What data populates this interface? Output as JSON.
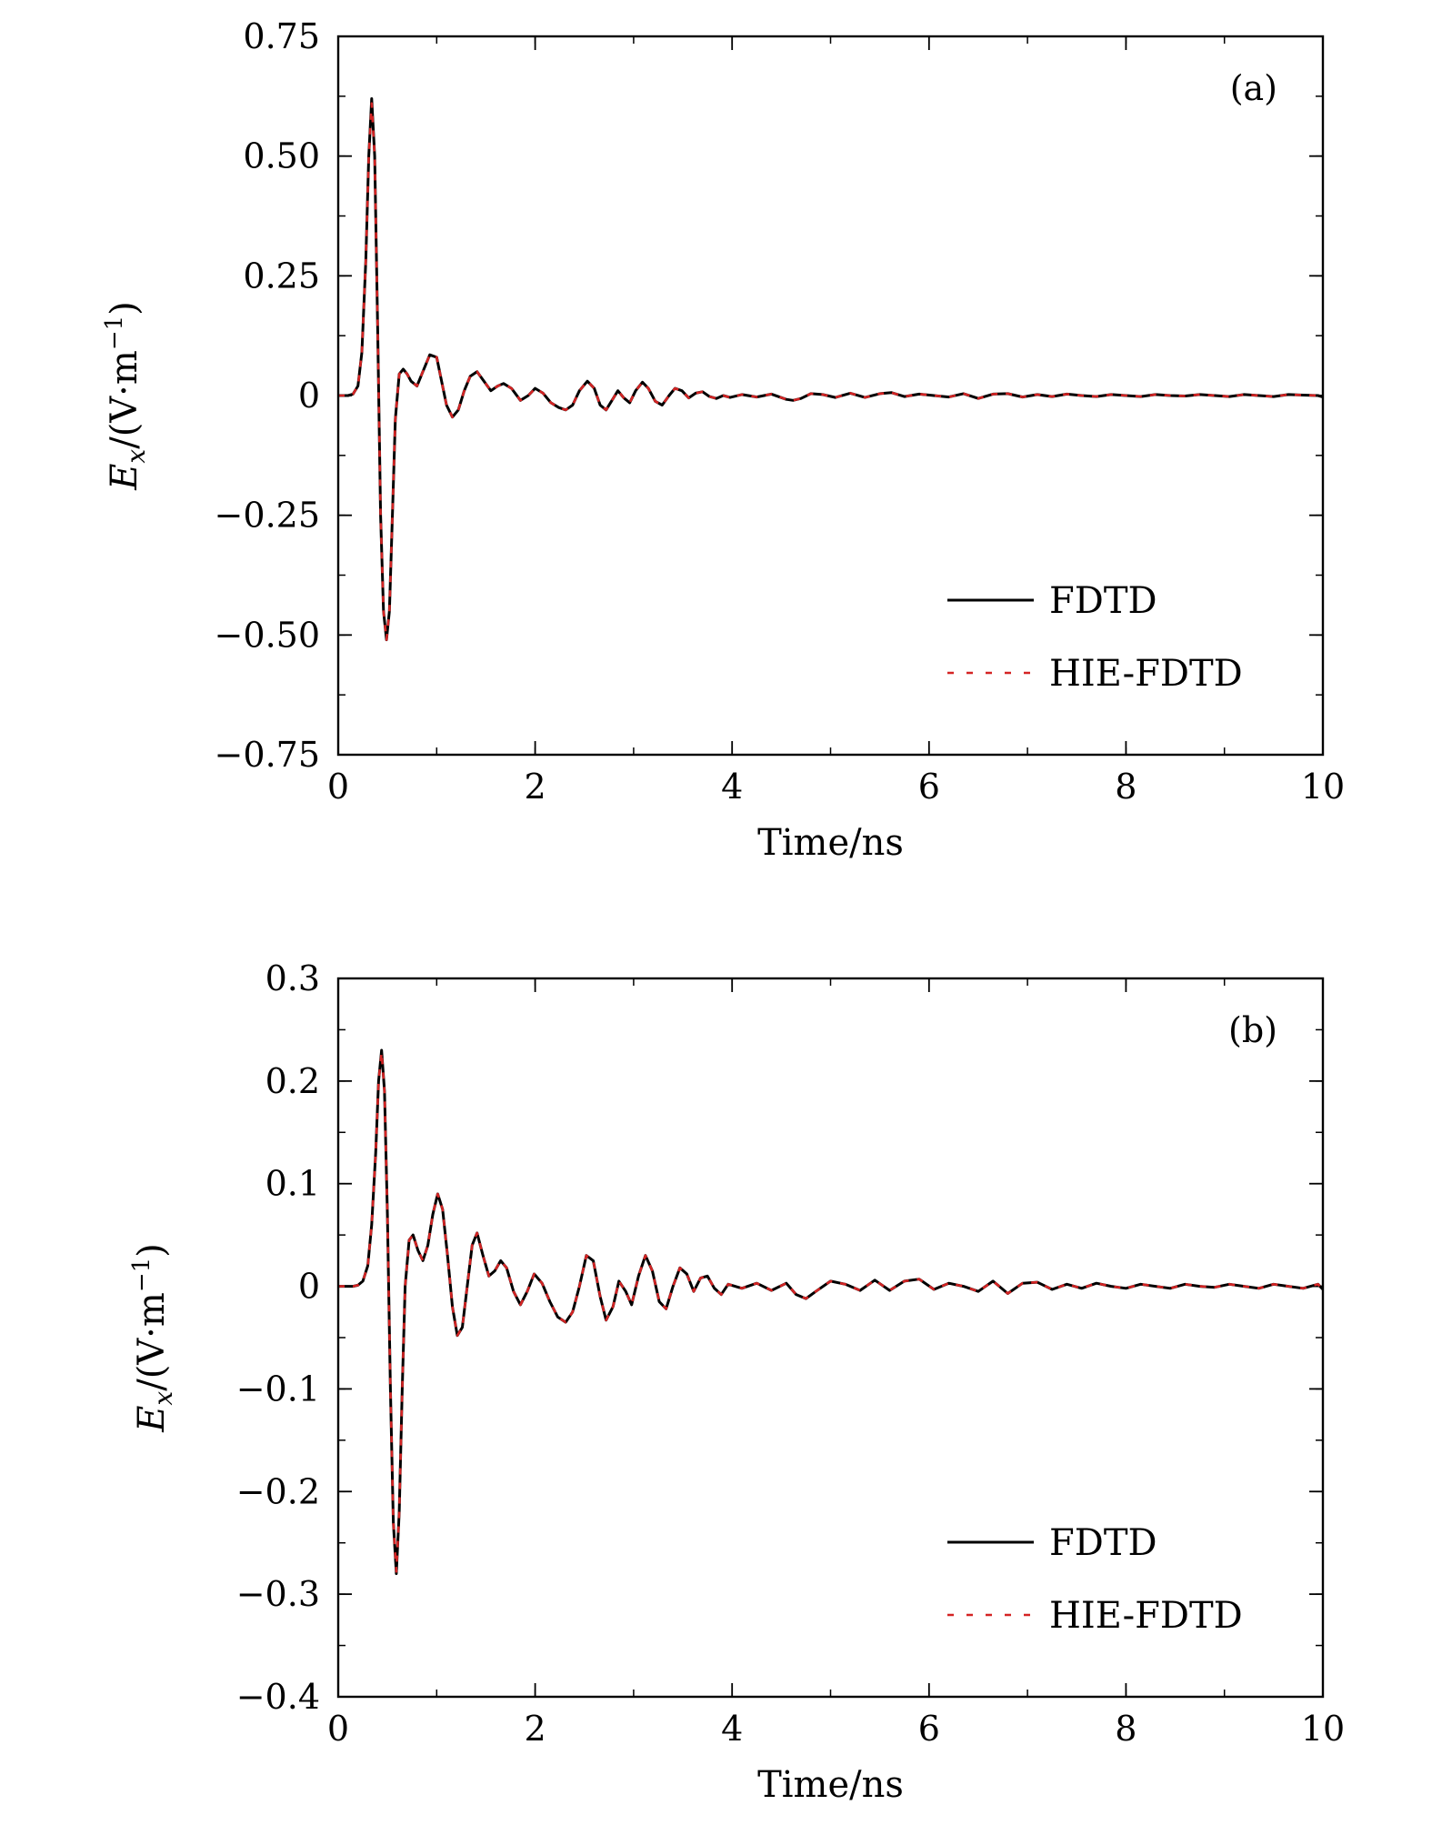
{
  "chart_data": [
    {
      "type": "line",
      "panel_label": "(a)",
      "xlabel": "Time/ns",
      "ylabel": "Ex/(V·m−1)",
      "ylabel_parts": {
        "symbol": "E",
        "sub": "x",
        "unit_open": "/(V·m",
        "sup": "−1",
        "unit_close": ")"
      },
      "xlim": [
        0,
        10
      ],
      "ylim": [
        -0.75,
        0.75
      ],
      "x_ticks": [
        0,
        2,
        4,
        6,
        8,
        10
      ],
      "x_tick_labels": [
        "0",
        "2",
        "4",
        "6",
        "8",
        "10"
      ],
      "y_ticks": [
        -0.75,
        -0.5,
        -0.25,
        0,
        0.25,
        0.5,
        0.75
      ],
      "y_tick_labels": [
        "−0.75",
        "−0.50",
        "−0.25",
        "0",
        "0.25",
        "0.50",
        "0.75"
      ],
      "grid": false,
      "legend_position": "bottom-right",
      "series": [
        {
          "name": "FDTD",
          "color": "#000000",
          "style": "solid",
          "x": [
            0,
            0.1,
            0.15,
            0.2,
            0.24,
            0.28,
            0.31,
            0.34,
            0.37,
            0.4,
            0.43,
            0.46,
            0.49,
            0.52,
            0.55,
            0.58,
            0.62,
            0.66,
            0.7,
            0.74,
            0.8,
            0.86,
            0.93,
            1.0,
            1.04,
            1.1,
            1.16,
            1.22,
            1.28,
            1.34,
            1.41,
            1.48,
            1.55,
            1.62,
            1.68,
            1.76,
            1.85,
            1.93,
            2.0,
            2.08,
            2.16,
            2.24,
            2.31,
            2.38,
            2.45,
            2.53,
            2.6,
            2.66,
            2.72,
            2.78,
            2.84,
            2.9,
            2.96,
            3.02,
            3.09,
            3.15,
            3.22,
            3.29,
            3.36,
            3.42,
            3.49,
            3.56,
            3.63,
            3.7,
            3.77,
            3.84,
            3.91,
            3.98,
            4.1,
            4.25,
            4.4,
            4.55,
            4.62,
            4.7,
            4.8,
            4.92,
            5.05,
            5.2,
            5.35,
            5.5,
            5.62,
            5.75,
            5.9,
            6.05,
            6.2,
            6.35,
            6.5,
            6.65,
            6.8,
            6.95,
            7.1,
            7.25,
            7.4,
            7.55,
            7.7,
            7.85,
            8.0,
            8.15,
            8.3,
            8.45,
            8.6,
            8.75,
            8.9,
            9.05,
            9.2,
            9.35,
            9.5,
            9.65,
            9.8,
            9.95,
            10.0
          ],
          "y": [
            0,
            0,
            0.003,
            0.02,
            0.09,
            0.28,
            0.5,
            0.62,
            0.5,
            0.15,
            -0.25,
            -0.45,
            -0.51,
            -0.45,
            -0.25,
            -0.05,
            0.045,
            0.055,
            0.045,
            0.03,
            0.02,
            0.05,
            0.085,
            0.08,
            0.04,
            -0.02,
            -0.045,
            -0.03,
            0.01,
            0.04,
            0.05,
            0.03,
            0.01,
            0.02,
            0.025,
            0.015,
            -0.01,
            0.0,
            0.015,
            0.005,
            -0.015,
            -0.025,
            -0.03,
            -0.02,
            0.01,
            0.03,
            0.015,
            -0.02,
            -0.03,
            -0.01,
            0.01,
            -0.005,
            -0.015,
            0.01,
            0.028,
            0.015,
            -0.012,
            -0.02,
            0.0,
            0.015,
            0.01,
            -0.005,
            0.005,
            0.008,
            -0.002,
            -0.006,
            0.0,
            -0.004,
            0.002,
            -0.003,
            0.003,
            -0.008,
            -0.01,
            -0.006,
            0.004,
            0.002,
            -0.004,
            0.005,
            -0.004,
            0.004,
            0.006,
            -0.002,
            0.003,
            0.0,
            -0.003,
            0.004,
            -0.006,
            0.003,
            0.004,
            -0.003,
            0.002,
            -0.002,
            0.003,
            0.0,
            -0.002,
            0.002,
            0.0,
            -0.002,
            0.002,
            0.0,
            -0.001,
            0.002,
            0.0,
            -0.002,
            0.002,
            0.0,
            -0.002,
            0.002,
            0.001,
            0.0,
            -0.003
          ]
        },
        {
          "name": "HIE-FDTD",
          "color": "#d42424",
          "style": "dashed",
          "x": [
            0,
            0.1,
            0.15,
            0.2,
            0.24,
            0.28,
            0.31,
            0.34,
            0.37,
            0.4,
            0.43,
            0.46,
            0.49,
            0.52,
            0.55,
            0.58,
            0.62,
            0.66,
            0.7,
            0.74,
            0.8,
            0.86,
            0.93,
            1.0,
            1.04,
            1.1,
            1.16,
            1.22,
            1.28,
            1.34,
            1.41,
            1.48,
            1.55,
            1.62,
            1.68,
            1.76,
            1.85,
            1.93,
            2.0,
            2.08,
            2.16,
            2.24,
            2.31,
            2.38,
            2.45,
            2.53,
            2.6,
            2.66,
            2.72,
            2.78,
            2.84,
            2.9,
            2.96,
            3.02,
            3.09,
            3.15,
            3.22,
            3.29,
            3.36,
            3.42,
            3.49,
            3.56,
            3.63,
            3.7,
            3.77,
            3.84,
            3.91,
            3.98,
            4.1,
            4.25,
            4.4,
            4.55,
            4.62,
            4.7,
            4.8,
            4.92,
            5.05,
            5.2,
            5.35,
            5.5,
            5.62,
            5.75,
            5.9,
            6.05,
            6.2,
            6.35,
            6.5,
            6.65,
            6.8,
            6.95,
            7.1,
            7.25,
            7.4,
            7.55,
            7.7,
            7.85,
            8.0,
            8.15,
            8.3,
            8.45,
            8.6,
            8.75,
            8.9,
            9.05,
            9.2,
            9.35,
            9.5,
            9.65,
            9.8,
            9.95,
            10.0
          ],
          "y": [
            0,
            0,
            0.003,
            0.02,
            0.09,
            0.28,
            0.5,
            0.61,
            0.5,
            0.15,
            -0.25,
            -0.45,
            -0.51,
            -0.45,
            -0.25,
            -0.05,
            0.045,
            0.055,
            0.045,
            0.03,
            0.02,
            0.05,
            0.085,
            0.08,
            0.04,
            -0.02,
            -0.045,
            -0.03,
            0.01,
            0.04,
            0.05,
            0.03,
            0.01,
            0.02,
            0.025,
            0.015,
            -0.01,
            0.0,
            0.015,
            0.005,
            -0.015,
            -0.025,
            -0.03,
            -0.02,
            0.01,
            0.03,
            0.015,
            -0.02,
            -0.03,
            -0.01,
            0.01,
            -0.005,
            -0.015,
            0.01,
            0.028,
            0.015,
            -0.012,
            -0.02,
            0.0,
            0.015,
            0.01,
            -0.005,
            0.005,
            0.008,
            -0.002,
            -0.006,
            0.0,
            -0.004,
            0.002,
            -0.003,
            0.003,
            -0.008,
            -0.01,
            -0.006,
            0.004,
            0.002,
            -0.004,
            0.005,
            -0.004,
            0.004,
            0.006,
            -0.002,
            0.003,
            0.0,
            -0.003,
            0.004,
            -0.006,
            0.003,
            0.004,
            -0.003,
            0.002,
            -0.002,
            0.003,
            0.0,
            -0.002,
            0.002,
            0.0,
            -0.002,
            0.002,
            0.0,
            -0.001,
            0.002,
            0.0,
            -0.002,
            0.002,
            0.0,
            -0.002,
            0.002,
            0.001,
            0.0,
            -0.003
          ]
        }
      ]
    },
    {
      "type": "line",
      "panel_label": "(b)",
      "xlabel": "Time/ns",
      "ylabel": "Ex/(V·m−1)",
      "ylabel_parts": {
        "symbol": "E",
        "sub": "x",
        "unit_open": "/(V·m",
        "sup": "−1",
        "unit_close": ")"
      },
      "xlim": [
        0,
        10
      ],
      "ylim": [
        -0.4,
        0.3
      ],
      "x_ticks": [
        0,
        2,
        4,
        6,
        8,
        10
      ],
      "x_tick_labels": [
        "0",
        "2",
        "4",
        "6",
        "8",
        "10"
      ],
      "y_ticks": [
        -0.4,
        -0.3,
        -0.2,
        -0.1,
        0,
        0.1,
        0.2,
        0.3
      ],
      "y_tick_labels": [
        "−0.4",
        "−0.3",
        "−0.2",
        "−0.1",
        "0",
        "0.1",
        "0.2",
        "0.3"
      ],
      "grid": false,
      "legend_position": "bottom-right",
      "series": [
        {
          "name": "FDTD",
          "color": "#000000",
          "style": "solid",
          "x": [
            0,
            0.15,
            0.2,
            0.25,
            0.3,
            0.34,
            0.38,
            0.41,
            0.44,
            0.47,
            0.5,
            0.53,
            0.56,
            0.59,
            0.62,
            0.65,
            0.68,
            0.72,
            0.76,
            0.81,
            0.86,
            0.91,
            0.96,
            1.01,
            1.06,
            1.11,
            1.16,
            1.21,
            1.26,
            1.31,
            1.36,
            1.41,
            1.47,
            1.53,
            1.59,
            1.65,
            1.71,
            1.78,
            1.85,
            1.92,
            1.99,
            2.07,
            2.15,
            2.23,
            2.31,
            2.38,
            2.45,
            2.52,
            2.59,
            2.66,
            2.72,
            2.79,
            2.85,
            2.92,
            2.98,
            3.05,
            3.12,
            3.19,
            3.26,
            3.33,
            3.4,
            3.47,
            3.54,
            3.61,
            3.68,
            3.75,
            3.82,
            3.89,
            3.96,
            4.1,
            4.25,
            4.4,
            4.55,
            4.65,
            4.75,
            4.85,
            5.0,
            5.15,
            5.3,
            5.45,
            5.6,
            5.75,
            5.9,
            6.05,
            6.2,
            6.35,
            6.5,
            6.65,
            6.8,
            6.95,
            7.1,
            7.25,
            7.4,
            7.55,
            7.7,
            7.85,
            8.0,
            8.15,
            8.3,
            8.45,
            8.6,
            8.75,
            8.9,
            9.05,
            9.2,
            9.35,
            9.5,
            9.65,
            9.8,
            9.95,
            10.0
          ],
          "y": [
            0,
            0,
            0.001,
            0.005,
            0.02,
            0.06,
            0.13,
            0.2,
            0.23,
            0.19,
            0.07,
            -0.1,
            -0.23,
            -0.28,
            -0.22,
            -0.1,
            0.0,
            0.045,
            0.05,
            0.035,
            0.025,
            0.04,
            0.07,
            0.09,
            0.075,
            0.03,
            -0.02,
            -0.048,
            -0.04,
            0.0,
            0.04,
            0.052,
            0.03,
            0.01,
            0.015,
            0.025,
            0.018,
            -0.005,
            -0.018,
            -0.005,
            0.012,
            0.003,
            -0.015,
            -0.03,
            -0.035,
            -0.025,
            0.0,
            0.03,
            0.025,
            -0.01,
            -0.033,
            -0.02,
            0.005,
            -0.005,
            -0.018,
            0.01,
            0.03,
            0.015,
            -0.015,
            -0.022,
            0.0,
            0.018,
            0.012,
            -0.005,
            0.008,
            0.01,
            -0.002,
            -0.008,
            0.002,
            -0.002,
            0.003,
            -0.004,
            0.003,
            -0.008,
            -0.012,
            -0.005,
            0.005,
            0.002,
            -0.004,
            0.006,
            -0.004,
            0.005,
            0.007,
            -0.003,
            0.003,
            0.0,
            -0.005,
            0.005,
            -0.007,
            0.003,
            0.004,
            -0.003,
            0.002,
            -0.002,
            0.003,
            0.0,
            -0.002,
            0.002,
            0.0,
            -0.002,
            0.002,
            0.0,
            -0.001,
            0.002,
            0.0,
            -0.002,
            0.002,
            0.0,
            -0.002,
            0.002,
            -0.003
          ]
        },
        {
          "name": "HIE-FDTD",
          "color": "#d42424",
          "style": "dashed",
          "x": [
            0,
            0.15,
            0.2,
            0.25,
            0.3,
            0.34,
            0.38,
            0.41,
            0.44,
            0.47,
            0.5,
            0.53,
            0.56,
            0.59,
            0.62,
            0.65,
            0.68,
            0.72,
            0.76,
            0.81,
            0.86,
            0.91,
            0.96,
            1.01,
            1.06,
            1.11,
            1.16,
            1.21,
            1.26,
            1.31,
            1.36,
            1.41,
            1.47,
            1.53,
            1.59,
            1.65,
            1.71,
            1.78,
            1.85,
            1.92,
            1.99,
            2.07,
            2.15,
            2.23,
            2.31,
            2.38,
            2.45,
            2.52,
            2.59,
            2.66,
            2.72,
            2.79,
            2.85,
            2.92,
            2.98,
            3.05,
            3.12,
            3.19,
            3.26,
            3.33,
            3.4,
            3.47,
            3.54,
            3.61,
            3.68,
            3.75,
            3.82,
            3.89,
            3.96,
            4.1,
            4.25,
            4.4,
            4.55,
            4.65,
            4.75,
            4.85,
            5.0,
            5.15,
            5.3,
            5.45,
            5.6,
            5.75,
            5.9,
            6.05,
            6.2,
            6.35,
            6.5,
            6.65,
            6.8,
            6.95,
            7.1,
            7.25,
            7.4,
            7.55,
            7.7,
            7.85,
            8.0,
            8.15,
            8.3,
            8.45,
            8.6,
            8.75,
            8.9,
            9.05,
            9.2,
            9.35,
            9.5,
            9.65,
            9.8,
            9.95,
            10.0
          ],
          "y": [
            0,
            0,
            0.001,
            0.005,
            0.02,
            0.06,
            0.13,
            0.2,
            0.228,
            0.19,
            0.07,
            -0.1,
            -0.23,
            -0.278,
            -0.22,
            -0.1,
            0.0,
            0.045,
            0.05,
            0.035,
            0.025,
            0.04,
            0.07,
            0.09,
            0.075,
            0.03,
            -0.02,
            -0.048,
            -0.04,
            0.0,
            0.04,
            0.052,
            0.03,
            0.01,
            0.015,
            0.025,
            0.018,
            -0.005,
            -0.018,
            -0.005,
            0.012,
            0.003,
            -0.015,
            -0.03,
            -0.035,
            -0.025,
            0.0,
            0.03,
            0.025,
            -0.01,
            -0.033,
            -0.02,
            0.005,
            -0.005,
            -0.018,
            0.01,
            0.03,
            0.015,
            -0.015,
            -0.022,
            0.0,
            0.018,
            0.012,
            -0.005,
            0.008,
            0.01,
            -0.002,
            -0.008,
            0.002,
            -0.002,
            0.003,
            -0.004,
            0.003,
            -0.008,
            -0.012,
            -0.005,
            0.005,
            0.002,
            -0.004,
            0.006,
            -0.004,
            0.005,
            0.007,
            -0.003,
            0.003,
            0.0,
            -0.005,
            0.005,
            -0.007,
            0.003,
            0.004,
            -0.003,
            0.002,
            -0.002,
            0.003,
            0.0,
            -0.002,
            0.002,
            0.0,
            -0.002,
            0.002,
            0.0,
            -0.001,
            0.002,
            0.0,
            -0.002,
            0.002,
            0.0,
            -0.002,
            0.002,
            -0.003
          ]
        }
      ]
    }
  ]
}
